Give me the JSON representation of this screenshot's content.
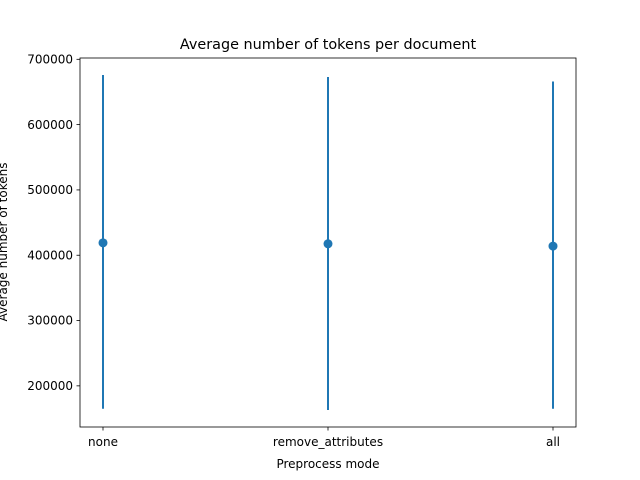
{
  "chart_data": {
    "type": "scatter",
    "title": "Average number of tokens per document",
    "xlabel": "Preprocess mode",
    "ylabel": "Average number of tokens",
    "categories": [
      "none",
      "remove_attributes",
      "all"
    ],
    "series": [
      {
        "values": [
          419000,
          417500,
          414000
        ],
        "error_low": [
          165000,
          163000,
          165000
        ],
        "error_high": [
          676000,
          673000,
          666000
        ]
      }
    ],
    "ylim": [
      137000,
      702000
    ],
    "yticks": [
      200000,
      300000,
      400000,
      500000,
      600000,
      700000
    ],
    "ytick_labels": [
      "200000",
      "300000",
      "400000",
      "500000",
      "600000",
      "700000"
    ],
    "grid": false,
    "legend": "none",
    "colors": {
      "series": "#1f77b4",
      "axes": "#000000"
    }
  }
}
